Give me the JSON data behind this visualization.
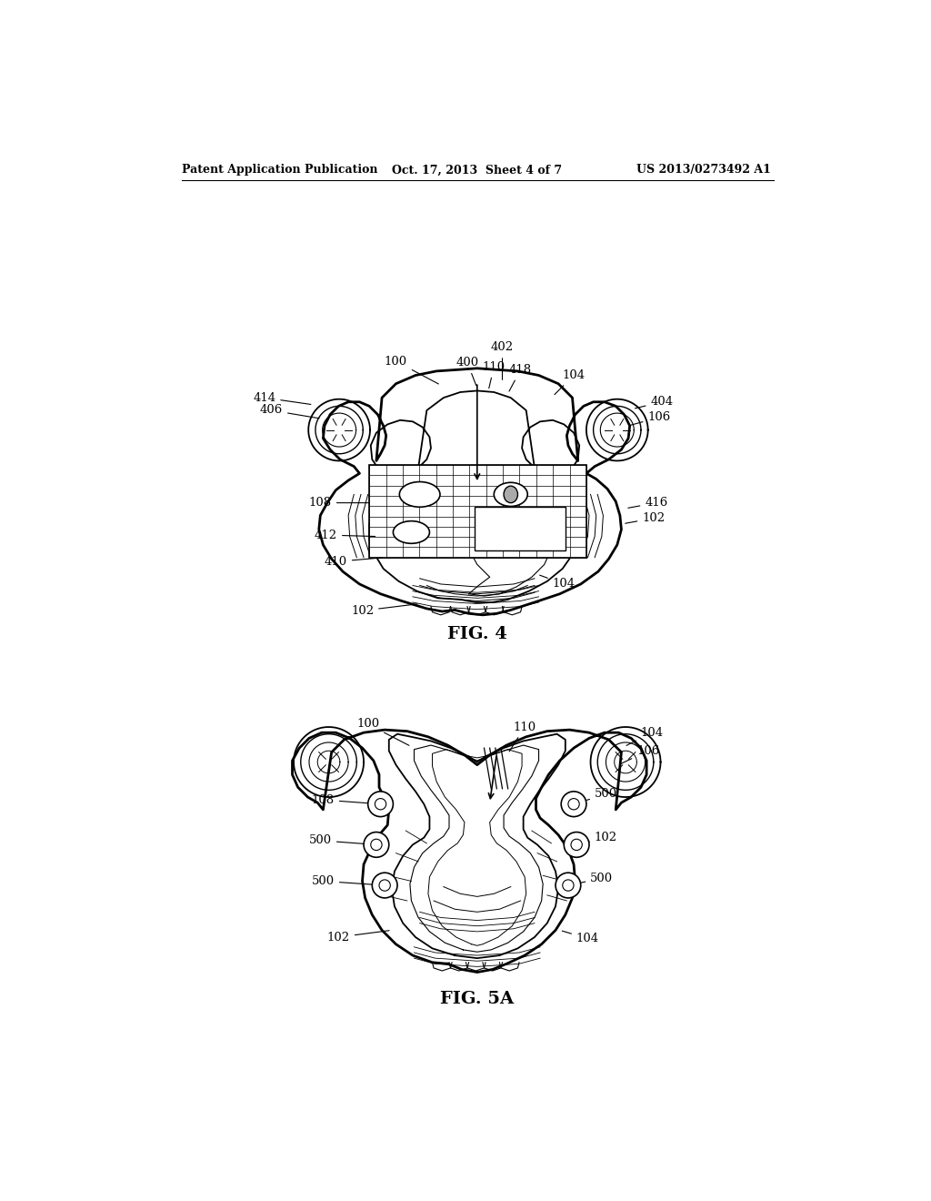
{
  "background_color": "#ffffff",
  "page_width": 10.24,
  "page_height": 13.2,
  "header_left": "Patent Application Publication",
  "header_mid": "Oct. 17, 2013  Sheet 4 of 7",
  "header_right": "US 2013/0273492 A1",
  "fig4_label": "FIG. 4",
  "fig5a_label": "FIG. 5A"
}
